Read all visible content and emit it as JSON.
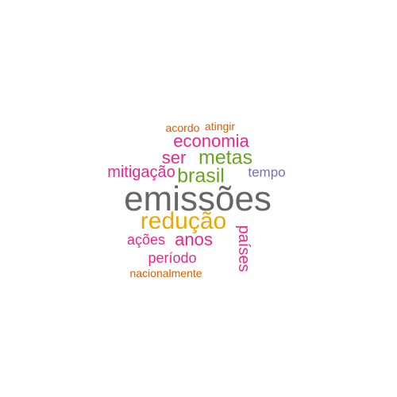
{
  "wordcloud": {
    "words": [
      {
        "id": "emissoes",
        "text": "emissões",
        "color": "#666666",
        "rotated": false
      },
      {
        "id": "reducao",
        "text": "redução",
        "color": "#E6AB02",
        "rotated": false
      },
      {
        "id": "brasil",
        "text": "brasil",
        "color": "#66A61E",
        "rotated": false
      },
      {
        "id": "metas",
        "text": "metas",
        "color": "#66A61E",
        "rotated": false
      },
      {
        "id": "economia",
        "text": "economia",
        "color": "#E7298A",
        "rotated": false
      },
      {
        "id": "ser",
        "text": "ser",
        "color": "#E7298A",
        "rotated": false
      },
      {
        "id": "mitigacao",
        "text": "mitigação",
        "color": "#E7298A",
        "rotated": false
      },
      {
        "id": "anos",
        "text": "anos",
        "color": "#E7298A",
        "rotated": false
      },
      {
        "id": "acoes",
        "text": "ações",
        "color": "#E7298A",
        "rotated": false
      },
      {
        "id": "periodo",
        "text": "período",
        "color": "#E7298A",
        "rotated": false
      },
      {
        "id": "paises",
        "text": "países",
        "color": "#E7298A",
        "rotated": true
      },
      {
        "id": "tempo",
        "text": "tempo",
        "color": "#7570B3",
        "rotated": false
      },
      {
        "id": "acordo",
        "text": "acordo",
        "color": "#D95F02",
        "rotated": false
      },
      {
        "id": "atingir",
        "text": "atingir",
        "color": "#D95F02",
        "rotated": false
      },
      {
        "id": "nacionalmente",
        "text": "nacionalmente",
        "color": "#D95F02",
        "rotated": false
      }
    ]
  }
}
